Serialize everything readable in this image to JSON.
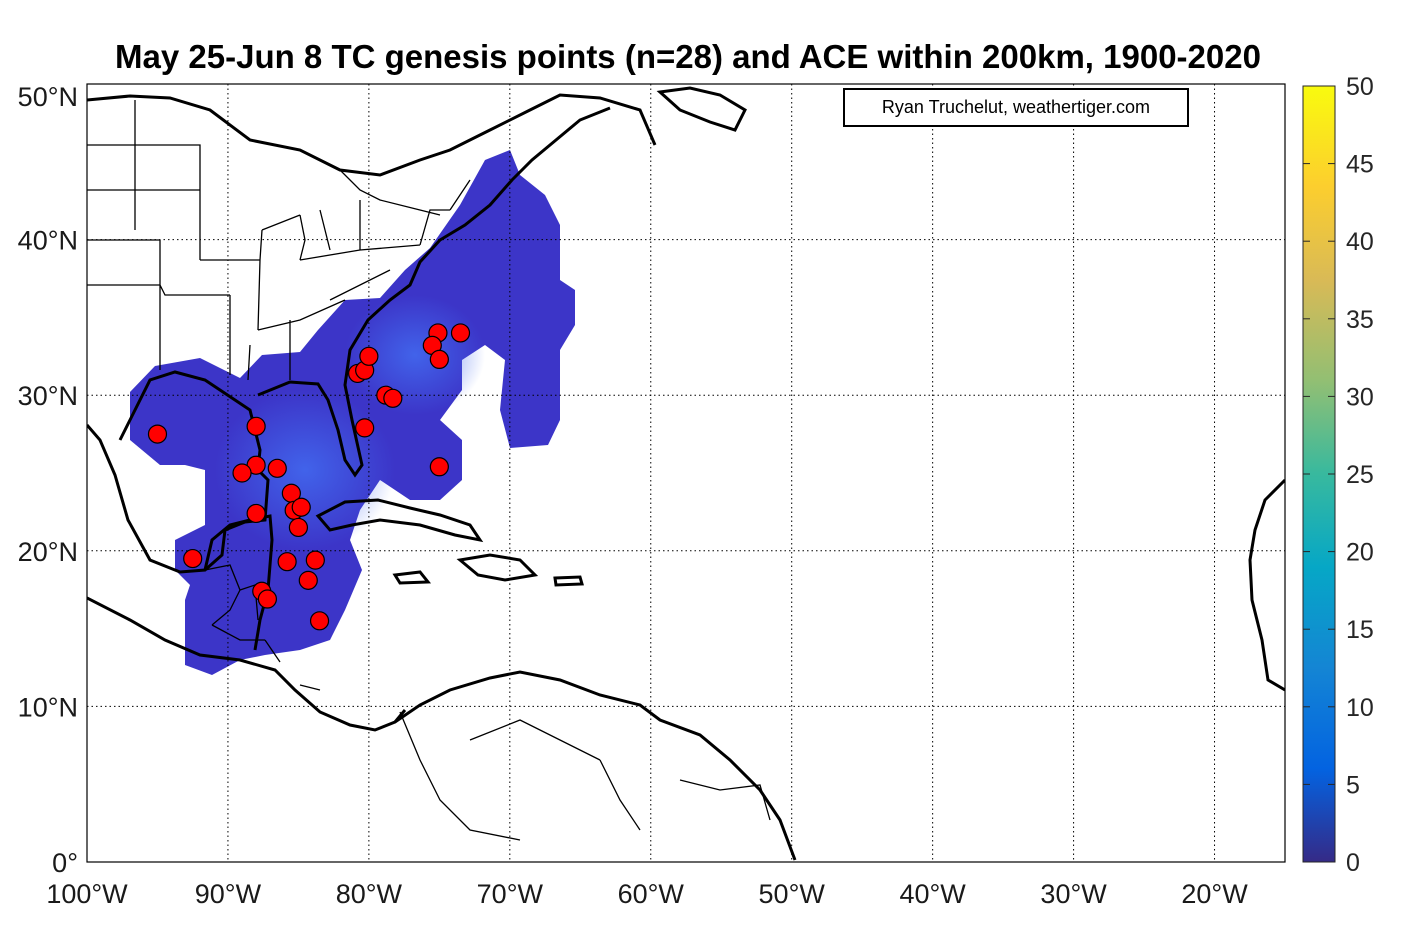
{
  "title": "May 25-Jun 8 TC genesis points (n=28) and ACE within 200km, 1900-2020",
  "credit": "Ryan Truchelut, weathertiger.com",
  "map": {
    "lon_range": [
      -100,
      -15
    ],
    "lat_range": [
      0,
      50
    ],
    "x_ticks": [
      {
        "lon": -100,
        "label": "100°W"
      },
      {
        "lon": -90,
        "label": "90°W"
      },
      {
        "lon": -80,
        "label": "80°W"
      },
      {
        "lon": -70,
        "label": "70°W"
      },
      {
        "lon": -60,
        "label": "60°W"
      },
      {
        "lon": -50,
        "label": "50°W"
      },
      {
        "lon": -40,
        "label": "40°W"
      },
      {
        "lon": -30,
        "label": "30°W"
      },
      {
        "lon": -20,
        "label": "20°W"
      }
    ],
    "y_ticks": [
      {
        "lat": 0,
        "label": "0°"
      },
      {
        "lat": 10,
        "label": "10°N"
      },
      {
        "lat": 20,
        "label": "20°N"
      },
      {
        "lat": 30,
        "label": "30°N"
      },
      {
        "lat": 40,
        "label": "40°N"
      },
      {
        "lat": 50,
        "label": "50°N"
      }
    ],
    "grid": true
  },
  "colorbar": {
    "range": [
      0,
      50
    ],
    "ticks": [
      "0",
      "5",
      "10",
      "15",
      "20",
      "25",
      "30",
      "35",
      "40",
      "45",
      "50"
    ],
    "colormap": "parula",
    "colors": [
      "#352a87",
      "#0363e1",
      "#1485d4",
      "#06a7c6",
      "#38b99e",
      "#92bf73",
      "#d9ba56",
      "#fcce2e",
      "#f9fb0e"
    ]
  },
  "colors": {
    "ace_fill": "#3d35c9",
    "ace_core": "#3f63e8",
    "genesis_point": "#ff0000",
    "coast": "#000000"
  },
  "genesis_points": [
    {
      "lon": -95.0,
      "lat": 27.5
    },
    {
      "lon": -92.5,
      "lat": 19.5
    },
    {
      "lon": -88.0,
      "lat": 28.0
    },
    {
      "lon": -88.0,
      "lat": 25.5
    },
    {
      "lon": -89.0,
      "lat": 25.0
    },
    {
      "lon": -86.5,
      "lat": 25.3
    },
    {
      "lon": -85.5,
      "lat": 23.7
    },
    {
      "lon": -85.3,
      "lat": 22.6
    },
    {
      "lon": -84.8,
      "lat": 22.8
    },
    {
      "lon": -85.0,
      "lat": 21.5
    },
    {
      "lon": -88.0,
      "lat": 22.4
    },
    {
      "lon": -85.8,
      "lat": 19.3
    },
    {
      "lon": -83.8,
      "lat": 19.4
    },
    {
      "lon": -84.3,
      "lat": 18.1
    },
    {
      "lon": -87.6,
      "lat": 17.4
    },
    {
      "lon": -87.2,
      "lat": 16.9
    },
    {
      "lon": -83.5,
      "lat": 15.5
    },
    {
      "lon": -80.8,
      "lat": 31.4
    },
    {
      "lon": -80.3,
      "lat": 31.6
    },
    {
      "lon": -80.0,
      "lat": 32.5
    },
    {
      "lon": -78.8,
      "lat": 30.0
    },
    {
      "lon": -78.3,
      "lat": 29.8
    },
    {
      "lon": -80.3,
      "lat": 27.9
    },
    {
      "lon": -75.1,
      "lat": 34.0
    },
    {
      "lon": -73.5,
      "lat": 34.0
    },
    {
      "lon": -75.5,
      "lat": 33.2
    },
    {
      "lon": -75.0,
      "lat": 32.3
    },
    {
      "lon": -75.0,
      "lat": 25.4
    }
  ]
}
